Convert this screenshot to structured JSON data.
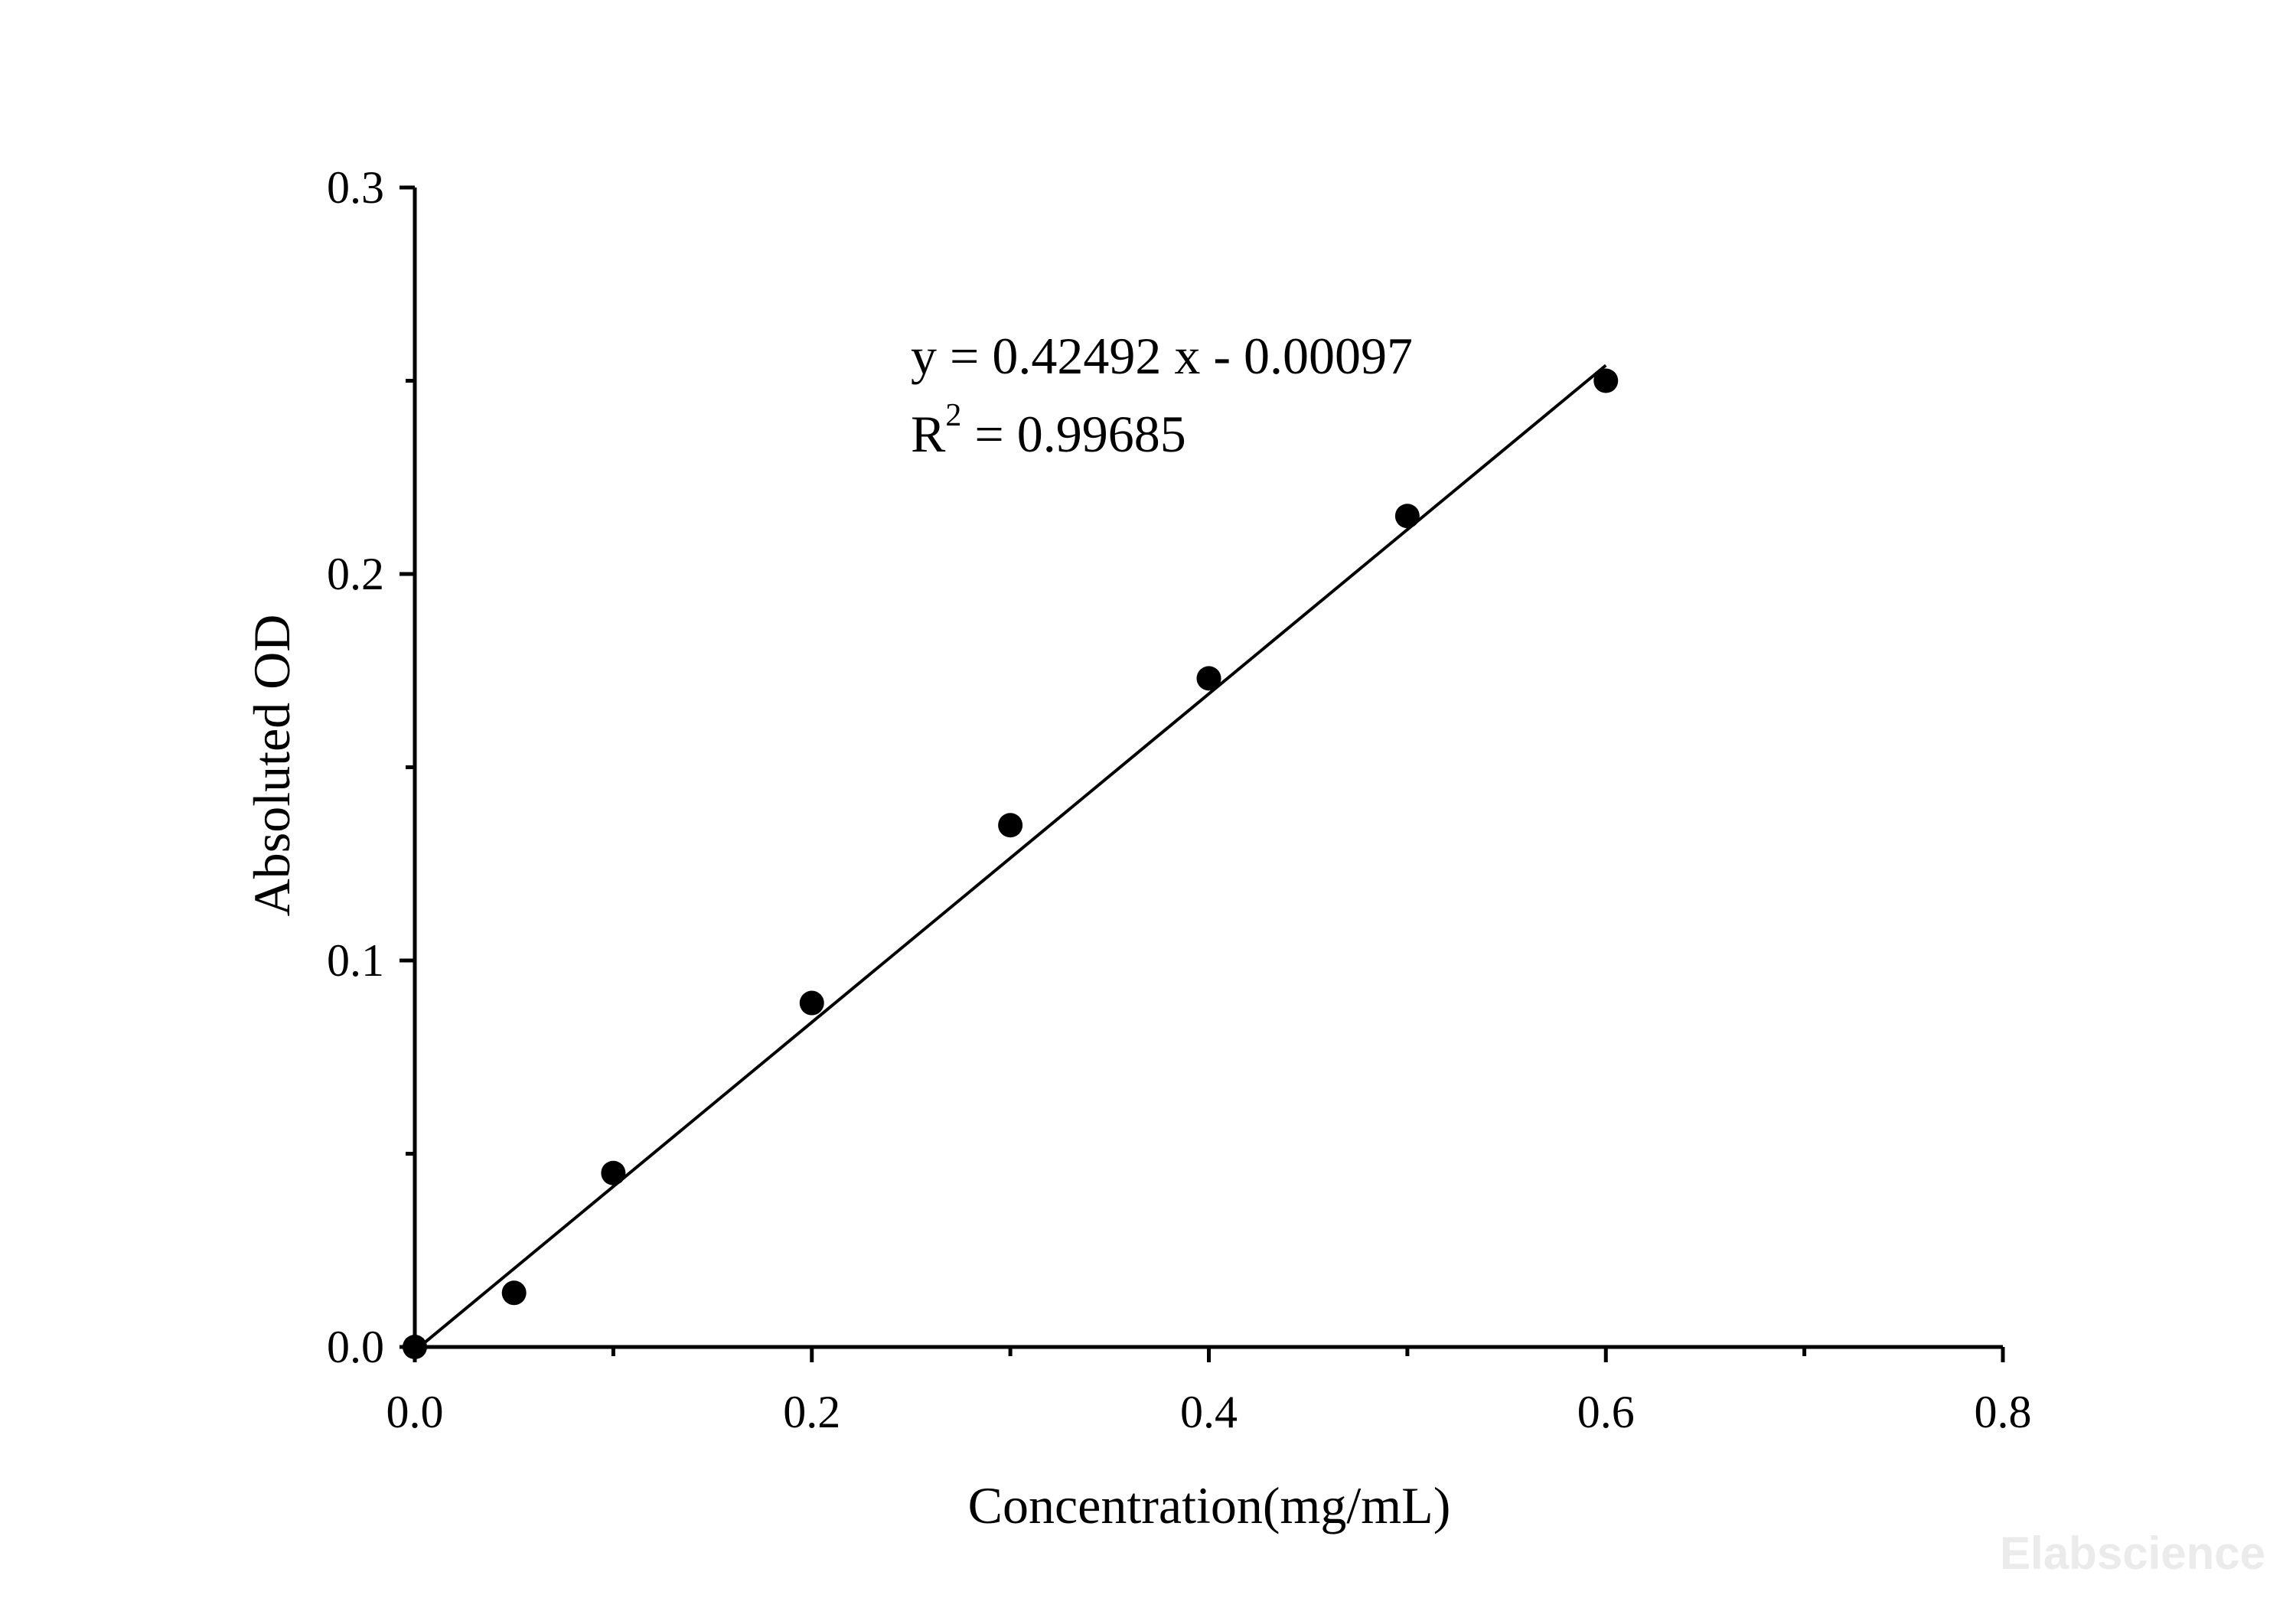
{
  "chart_data": {
    "type": "scatter",
    "xlabel": "Concentration(mg/mL)",
    "ylabel": "Absoluted OD",
    "xlim": [
      0,
      0.8
    ],
    "ylim": [
      0,
      0.3
    ],
    "x_ticks": [
      "0.0",
      "0.2",
      "0.4",
      "0.6",
      "0.8"
    ],
    "y_ticks": [
      "0.0",
      "0.1",
      "0.2",
      "0.3"
    ],
    "x_tick_values": [
      0,
      0.2,
      0.4,
      0.6,
      0.8
    ],
    "y_tick_values": [
      0,
      0.1,
      0.2,
      0.3
    ],
    "x_minor_ticks": [
      0.1,
      0.3,
      0.5,
      0.7
    ],
    "y_minor_ticks": [
      0.05,
      0.15,
      0.25
    ],
    "grid": false,
    "series": [
      {
        "points": [
          {
            "x": 0,
            "y": 0.0
          },
          {
            "x": 0.05,
            "y": 0.014
          },
          {
            "x": 0.1,
            "y": 0.045
          },
          {
            "x": 0.2,
            "y": 0.089
          },
          {
            "x": 0.3,
            "y": 0.135
          },
          {
            "x": 0.4,
            "y": 0.173
          },
          {
            "x": 0.5,
            "y": 0.215
          },
          {
            "x": 0.6,
            "y": 0.25
          }
        ],
        "color": "#000000"
      }
    ],
    "fit": {
      "slope": 0.42492,
      "intercept": -0.00097,
      "x_range": [
        0,
        0.6
      ]
    },
    "annotations": {
      "equation": "y = 0.42492 x - 0.00097",
      "r2_prefix": "R",
      "r2_sup": "2",
      "r2_value": " = 0.99685"
    }
  },
  "watermark": "Elabscience"
}
